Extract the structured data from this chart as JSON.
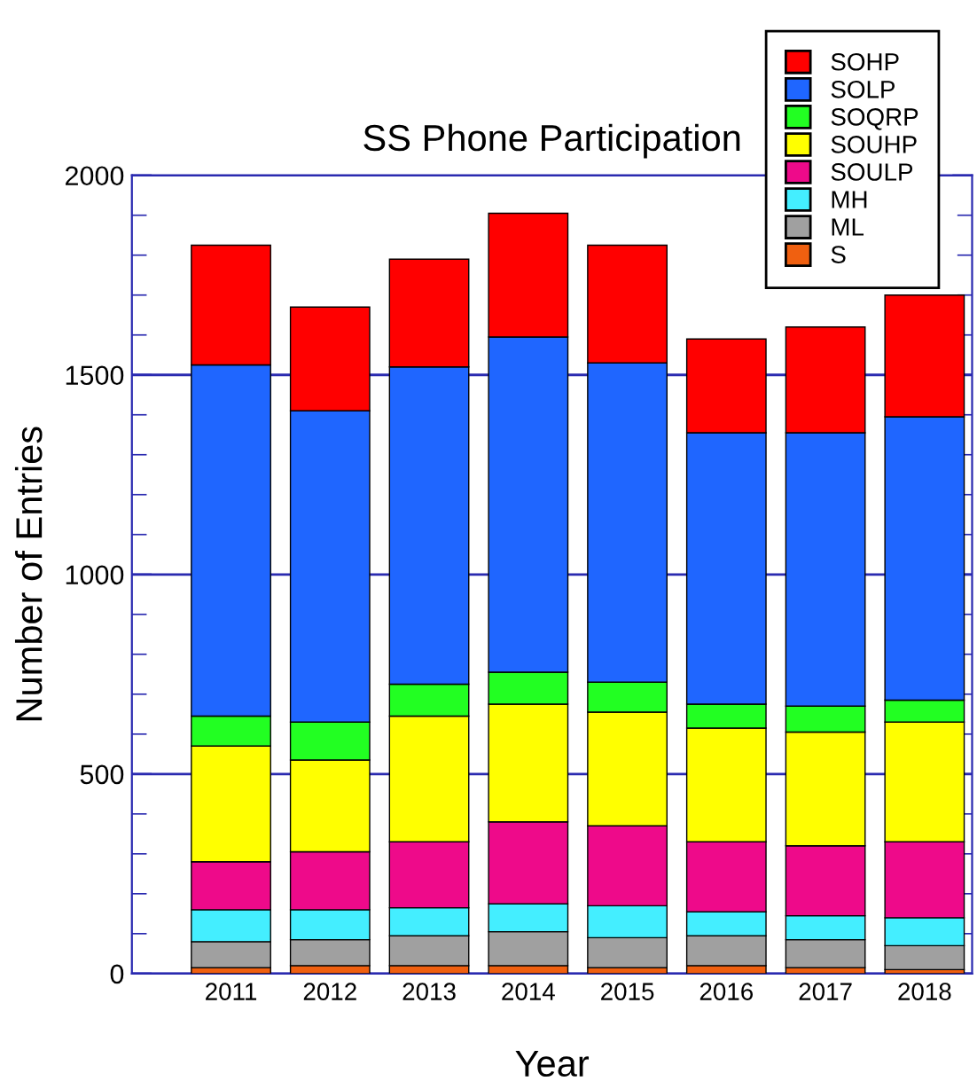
{
  "chart_data": {
    "type": "bar",
    "stacked": true,
    "title": "SS Phone Participation",
    "xlabel": "Year",
    "ylabel": "Number of Entries",
    "categories": [
      "2011",
      "2012",
      "2013",
      "2014",
      "2015",
      "2016",
      "2017",
      "2018"
    ],
    "series": [
      {
        "name": "S",
        "color": "#f06010",
        "values": [
          15,
          20,
          20,
          20,
          15,
          20,
          15,
          10
        ]
      },
      {
        "name": "ML",
        "color": "#a0a0a0",
        "values": [
          65,
          65,
          75,
          85,
          75,
          75,
          70,
          60
        ]
      },
      {
        "name": "MH",
        "color": "#44eeff",
        "values": [
          80,
          75,
          70,
          70,
          80,
          60,
          60,
          70
        ]
      },
      {
        "name": "SOULP",
        "color": "#ee0a8a",
        "values": [
          120,
          145,
          165,
          205,
          200,
          175,
          175,
          190
        ]
      },
      {
        "name": "SOUHP",
        "color": "#ffff00",
        "values": [
          290,
          230,
          315,
          295,
          285,
          285,
          285,
          300
        ]
      },
      {
        "name": "SOQRP",
        "color": "#22ff22",
        "values": [
          75,
          95,
          80,
          80,
          75,
          60,
          65,
          55
        ]
      },
      {
        "name": "SOLP",
        "color": "#1f66ff",
        "values": [
          880,
          780,
          795,
          840,
          800,
          680,
          685,
          710
        ]
      },
      {
        "name": "SOHP",
        "color": "#ff0000",
        "values": [
          300,
          260,
          270,
          310,
          295,
          235,
          265,
          305
        ]
      }
    ],
    "ylim": [
      0,
      2000
    ],
    "yticks": [
      0,
      {
        "value": 100,
        "label": null
      },
      {
        "value": 200,
        "label": null
      },
      {
        "value": 300,
        "label": null
      },
      {
        "value": 400,
        "label": null
      },
      500,
      {
        "value": 600,
        "label": null
      },
      {
        "value": 700,
        "label": null
      },
      {
        "value": 800,
        "label": null
      },
      {
        "value": 900,
        "label": null
      },
      1000,
      {
        "value": 1100,
        "label": null
      },
      {
        "value": 1200,
        "label": null
      },
      {
        "value": 1300,
        "label": null
      },
      {
        "value": 1400,
        "label": null
      },
      1500,
      {
        "value": 1600,
        "label": null
      },
      {
        "value": 1700,
        "label": null
      },
      {
        "value": 1800,
        "label": null
      },
      {
        "value": 1900,
        "label": null
      },
      2000
    ],
    "grid": "y",
    "legend": "top right"
  }
}
